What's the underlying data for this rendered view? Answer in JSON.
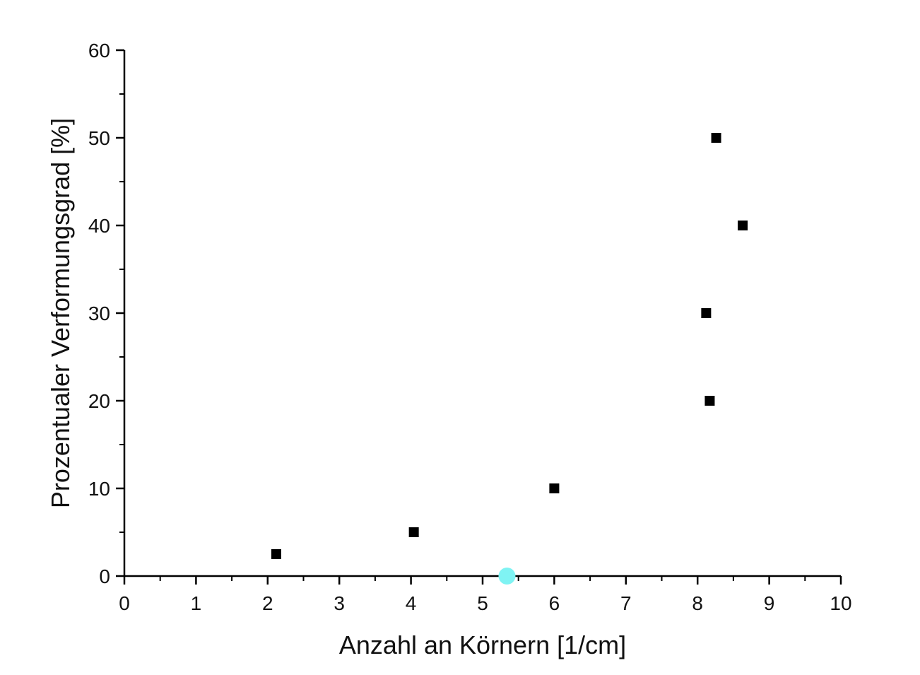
{
  "chart_data": {
    "type": "scatter",
    "xlabel": "Anzahl an Körnern [1/cm]",
    "ylabel": "Prozentualer Verformungsgrad [%]",
    "xlim": [
      0,
      10
    ],
    "ylim": [
      0,
      60
    ],
    "x_ticks": [
      "0",
      "1",
      "2",
      "3",
      "4",
      "5",
      "6",
      "7",
      "8",
      "9",
      "10"
    ],
    "y_ticks": [
      "0",
      "10",
      "20",
      "30",
      "40",
      "50",
      "60"
    ],
    "grid": false,
    "series": [
      {
        "marker": "square",
        "color": "#000000",
        "points": [
          {
            "x": 2.12,
            "y": 2.5
          },
          {
            "x": 4.04,
            "y": 5
          },
          {
            "x": 6.0,
            "y": 10
          },
          {
            "x": 8.17,
            "y": 20
          },
          {
            "x": 8.12,
            "y": 30
          },
          {
            "x": 8.63,
            "y": 40
          },
          {
            "x": 8.26,
            "y": 50
          }
        ]
      },
      {
        "marker": "circle",
        "color": "#7ff3f3",
        "points": [
          {
            "x": 5.34,
            "y": 0
          }
        ]
      }
    ]
  }
}
